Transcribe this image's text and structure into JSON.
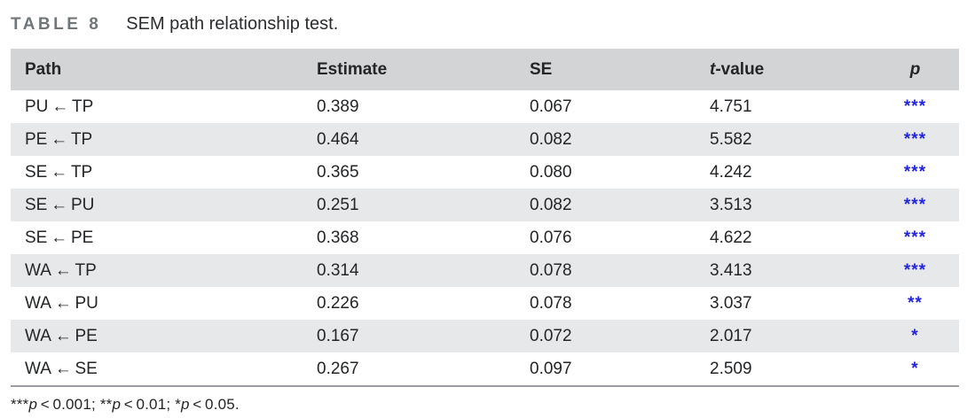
{
  "caption": {
    "tag": "TABLE 8",
    "text": "SEM path relationship test."
  },
  "table": {
    "columns": [
      {
        "key": "path",
        "label": "Path"
      },
      {
        "key": "estimate",
        "label": "Estimate"
      },
      {
        "key": "se",
        "label": "SE"
      },
      {
        "key": "tvalue",
        "label_italic": "t",
        "label_rest": "-value"
      },
      {
        "key": "p",
        "label": "p"
      }
    ],
    "rows": [
      {
        "path": "PU ← TP",
        "estimate": "0.389",
        "se": "0.067",
        "tvalue": "4.751",
        "p": "***"
      },
      {
        "path": "PE ← TP",
        "estimate": "0.464",
        "se": "0.082",
        "tvalue": "5.582",
        "p": "***"
      },
      {
        "path": "SE ← TP",
        "estimate": "0.365",
        "se": "0.080",
        "tvalue": "4.242",
        "p": "***"
      },
      {
        "path": "SE ← PU",
        "estimate": "0.251",
        "se": "0.082",
        "tvalue": "3.513",
        "p": "***"
      },
      {
        "path": "SE ← PE",
        "estimate": "0.368",
        "se": "0.076",
        "tvalue": "4.622",
        "p": "***"
      },
      {
        "path": "WA ← TP",
        "estimate": "0.314",
        "se": "0.078",
        "tvalue": "3.413",
        "p": "***"
      },
      {
        "path": "WA ← PU",
        "estimate": "0.226",
        "se": "0.078",
        "tvalue": "3.037",
        "p": "**"
      },
      {
        "path": "WA ← PE",
        "estimate": "0.167",
        "se": "0.072",
        "tvalue": "2.017",
        "p": "*"
      },
      {
        "path": "WA ← SE",
        "estimate": "0.267",
        "se": "0.097",
        "tvalue": "2.509",
        "p": "*"
      }
    ]
  },
  "footnote": {
    "segments": [
      {
        "text": "***"
      },
      {
        "text": "p",
        "italic": true
      },
      {
        "text": " < 0.001; "
      },
      {
        "text": "**"
      },
      {
        "text": "p",
        "italic": true
      },
      {
        "text": " < 0.01; "
      },
      {
        "text": "*"
      },
      {
        "text": "p",
        "italic": true
      },
      {
        "text": " < 0.05."
      }
    ]
  },
  "colors": {
    "header_bg": "#d2d4d5",
    "shaded_row_bg": "#e7e8ea",
    "significance_star": "#2323de",
    "caption_tag": "#717678",
    "rule": "#9b9da0"
  }
}
